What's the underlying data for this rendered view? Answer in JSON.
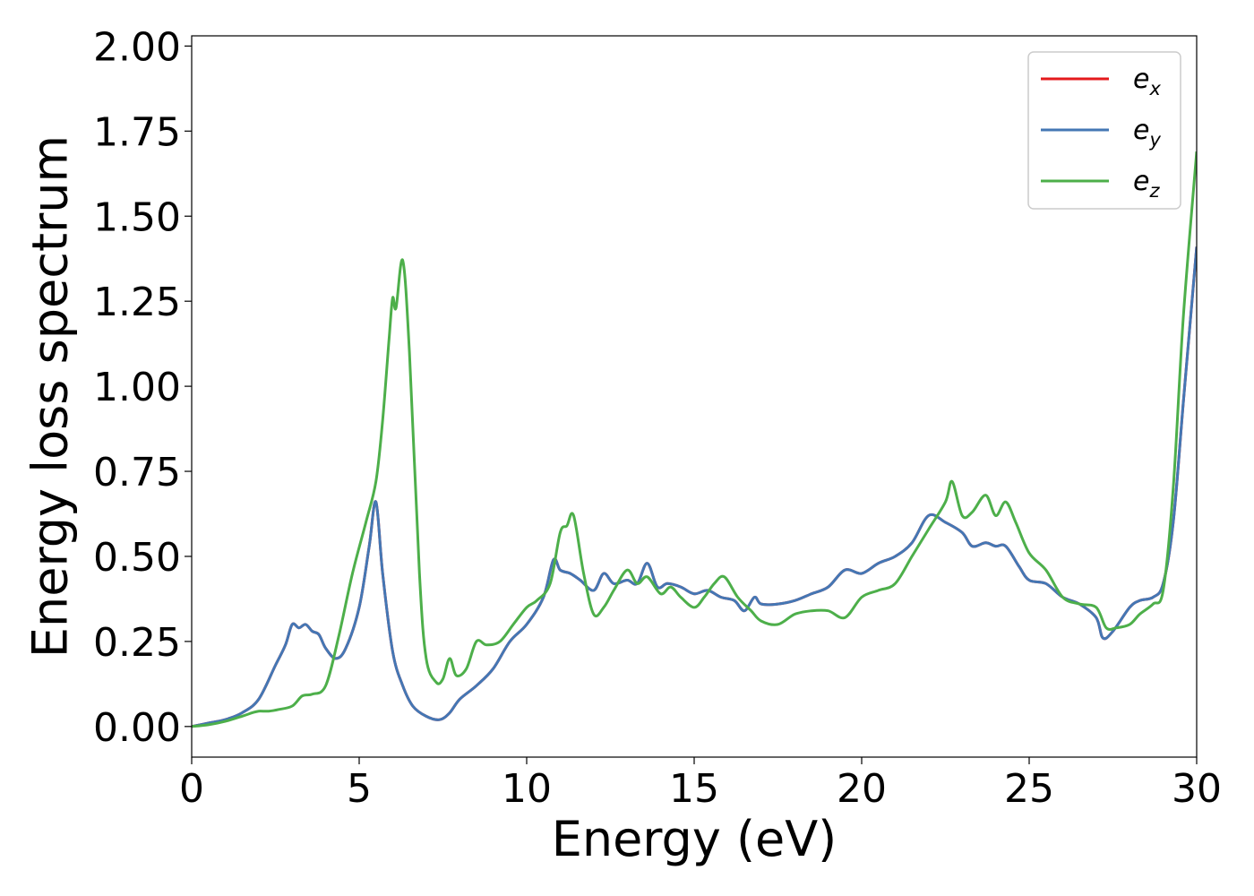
{
  "chart_data": {
    "type": "line",
    "title": "",
    "xlabel": "Energy (eV)",
    "ylabel": "Energy loss spectrum",
    "xlim": [
      0,
      30
    ],
    "ylim": [
      -0.09,
      2.03
    ],
    "xticks": [
      0,
      5,
      10,
      15,
      20,
      25,
      30
    ],
    "xtick_labels": [
      "0",
      "5",
      "10",
      "15",
      "20",
      "25",
      "30"
    ],
    "yticks": [
      0,
      0.25,
      0.5,
      0.75,
      1.0,
      1.25,
      1.5,
      1.75,
      2.0
    ],
    "ytick_labels": [
      "0.00",
      "0.25",
      "0.50",
      "0.75",
      "1.00",
      "1.25",
      "1.50",
      "1.75",
      "2.00"
    ],
    "grid": false,
    "legend_position": "top-right",
    "series": [
      {
        "name_base": "e",
        "name_sub": "x",
        "color": "#e41a1c",
        "x": [
          0,
          0.5,
          1,
          1.5,
          2,
          2.5,
          2.8,
          3,
          3.2,
          3.4,
          3.6,
          3.8,
          4,
          4.3,
          4.6,
          5,
          5.3,
          5.5,
          5.7,
          6,
          6.3,
          6.6,
          7,
          7.4,
          7.7,
          8,
          8.5,
          9,
          9.5,
          10,
          10.5,
          10.8,
          11,
          11.3,
          11.6,
          12,
          12.3,
          12.6,
          13,
          13.3,
          13.6,
          13.9,
          14.2,
          14.6,
          15,
          15.4,
          15.8,
          16.2,
          16.5,
          16.8,
          17,
          17.5,
          18,
          18.5,
          19,
          19.5,
          20,
          20.5,
          21,
          21.5,
          22,
          22.5,
          23,
          23.3,
          23.7,
          24,
          24.3,
          24.7,
          25,
          25.5,
          26,
          26.5,
          27,
          27.2,
          27.5,
          28,
          28.3,
          28.7,
          29,
          29.3,
          29.6,
          30
        ],
        "y": [
          0,
          0.01,
          0.02,
          0.04,
          0.08,
          0.18,
          0.24,
          0.3,
          0.29,
          0.3,
          0.28,
          0.27,
          0.23,
          0.2,
          0.23,
          0.35,
          0.53,
          0.66,
          0.45,
          0.22,
          0.12,
          0.06,
          0.03,
          0.02,
          0.04,
          0.08,
          0.12,
          0.17,
          0.25,
          0.3,
          0.38,
          0.49,
          0.46,
          0.45,
          0.43,
          0.4,
          0.45,
          0.42,
          0.43,
          0.42,
          0.48,
          0.41,
          0.42,
          0.41,
          0.39,
          0.4,
          0.38,
          0.37,
          0.34,
          0.38,
          0.36,
          0.36,
          0.37,
          0.39,
          0.41,
          0.46,
          0.45,
          0.48,
          0.5,
          0.54,
          0.62,
          0.6,
          0.57,
          0.53,
          0.54,
          0.53,
          0.53,
          0.47,
          0.43,
          0.42,
          0.38,
          0.36,
          0.32,
          0.26,
          0.28,
          0.35,
          0.37,
          0.38,
          0.42,
          0.6,
          0.95,
          1.41
        ]
      },
      {
        "name_base": "e",
        "name_sub": "y",
        "color": "#4477b4",
        "x": [
          0,
          0.5,
          1,
          1.5,
          2,
          2.5,
          2.8,
          3,
          3.2,
          3.4,
          3.6,
          3.8,
          4,
          4.3,
          4.6,
          5,
          5.3,
          5.5,
          5.7,
          6,
          6.3,
          6.6,
          7,
          7.4,
          7.7,
          8,
          8.5,
          9,
          9.5,
          10,
          10.5,
          10.8,
          11,
          11.3,
          11.6,
          12,
          12.3,
          12.6,
          13,
          13.3,
          13.6,
          13.9,
          14.2,
          14.6,
          15,
          15.4,
          15.8,
          16.2,
          16.5,
          16.8,
          17,
          17.5,
          18,
          18.5,
          19,
          19.5,
          20,
          20.5,
          21,
          21.5,
          22,
          22.5,
          23,
          23.3,
          23.7,
          24,
          24.3,
          24.7,
          25,
          25.5,
          26,
          26.5,
          27,
          27.2,
          27.5,
          28,
          28.3,
          28.7,
          29,
          29.3,
          29.6,
          30
        ],
        "y": [
          0,
          0.01,
          0.02,
          0.04,
          0.08,
          0.18,
          0.24,
          0.3,
          0.29,
          0.3,
          0.28,
          0.27,
          0.23,
          0.2,
          0.23,
          0.35,
          0.53,
          0.66,
          0.45,
          0.22,
          0.12,
          0.06,
          0.03,
          0.02,
          0.04,
          0.08,
          0.12,
          0.17,
          0.25,
          0.3,
          0.38,
          0.49,
          0.46,
          0.45,
          0.43,
          0.4,
          0.45,
          0.42,
          0.43,
          0.42,
          0.48,
          0.41,
          0.42,
          0.41,
          0.39,
          0.4,
          0.38,
          0.37,
          0.34,
          0.38,
          0.36,
          0.36,
          0.37,
          0.39,
          0.41,
          0.46,
          0.45,
          0.48,
          0.5,
          0.54,
          0.62,
          0.6,
          0.57,
          0.53,
          0.54,
          0.53,
          0.53,
          0.47,
          0.43,
          0.42,
          0.38,
          0.36,
          0.32,
          0.26,
          0.28,
          0.35,
          0.37,
          0.38,
          0.42,
          0.6,
          0.95,
          1.41
        ]
      },
      {
        "name_base": "e",
        "name_sub": "z",
        "color": "#4daf4a",
        "x": [
          0,
          0.5,
          1,
          1.5,
          1.8,
          2,
          2.3,
          2.6,
          3,
          3.3,
          3.6,
          4,
          4.4,
          4.8,
          5.2,
          5.5,
          5.7,
          5.9,
          6,
          6.1,
          6.3,
          6.5,
          6.8,
          7,
          7.3,
          7.5,
          7.7,
          7.9,
          8.2,
          8.5,
          8.8,
          9.2,
          9.6,
          10,
          10.3,
          10.7,
          11,
          11.2,
          11.4,
          11.7,
          12,
          12.3,
          12.6,
          13,
          13.3,
          13.6,
          14,
          14.3,
          14.6,
          15,
          15.3,
          15.6,
          15.9,
          16.3,
          16.7,
          17,
          17.5,
          18,
          18.5,
          19,
          19.5,
          20,
          20.5,
          21,
          21.5,
          22,
          22.5,
          22.7,
          23,
          23.3,
          23.7,
          24,
          24.3,
          24.6,
          25,
          25.5,
          26,
          26.5,
          27,
          27.3,
          27.6,
          28,
          28.3,
          28.7,
          29,
          29.3,
          29.6,
          30
        ],
        "y": [
          0,
          0.005,
          0.015,
          0.03,
          0.04,
          0.045,
          0.045,
          0.05,
          0.06,
          0.09,
          0.095,
          0.12,
          0.27,
          0.45,
          0.6,
          0.72,
          0.9,
          1.15,
          1.26,
          1.23,
          1.37,
          1.1,
          0.45,
          0.2,
          0.13,
          0.14,
          0.2,
          0.15,
          0.17,
          0.25,
          0.24,
          0.25,
          0.3,
          0.35,
          0.37,
          0.42,
          0.57,
          0.59,
          0.62,
          0.45,
          0.33,
          0.35,
          0.4,
          0.46,
          0.42,
          0.44,
          0.39,
          0.41,
          0.38,
          0.35,
          0.38,
          0.42,
          0.44,
          0.38,
          0.34,
          0.31,
          0.3,
          0.33,
          0.34,
          0.34,
          0.32,
          0.38,
          0.4,
          0.42,
          0.5,
          0.58,
          0.66,
          0.72,
          0.62,
          0.63,
          0.68,
          0.62,
          0.66,
          0.6,
          0.51,
          0.46,
          0.38,
          0.36,
          0.35,
          0.29,
          0.29,
          0.3,
          0.33,
          0.36,
          0.4,
          0.7,
          1.2,
          1.69
        ]
      }
    ]
  }
}
